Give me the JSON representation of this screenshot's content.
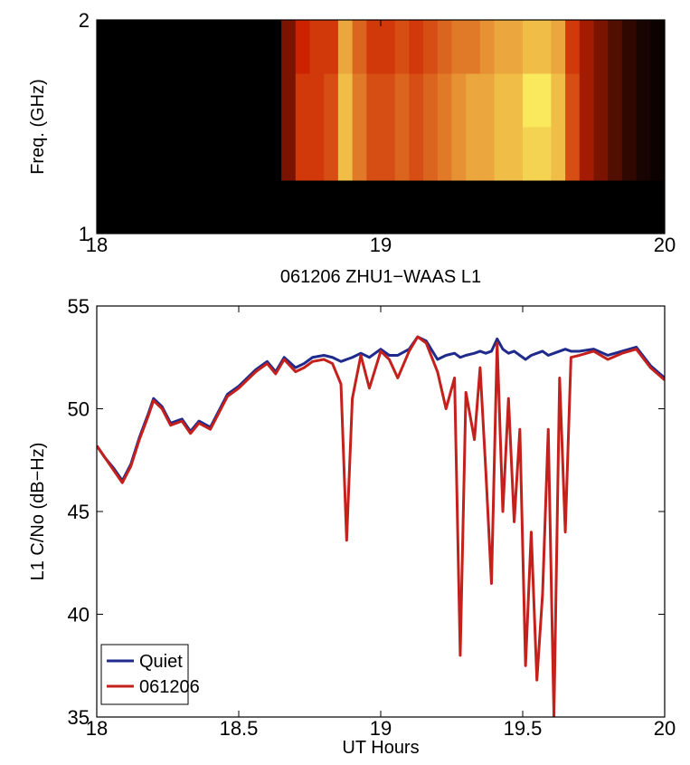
{
  "chart_data": [
    {
      "type": "heatmap",
      "x_label": "061206 ZHU1−WAAS L1",
      "y_label": "Freq. (GHz)",
      "x": [
        18,
        18.05,
        18.1,
        18.15,
        18.2,
        18.25,
        18.3,
        18.35,
        18.4,
        18.45,
        18.5,
        18.55,
        18.6,
        18.65,
        18.7,
        18.75,
        18.8,
        18.85,
        18.9,
        18.95,
        19,
        19.05,
        19.1,
        19.15,
        19.2,
        19.25,
        19.3,
        19.35,
        19.4,
        19.45,
        19.5,
        19.55,
        19.6,
        19.65,
        19.7,
        19.75,
        19.8,
        19.85,
        19.9,
        19.95,
        20
      ],
      "y": [
        1,
        1.25,
        1.5,
        1.75,
        2
      ],
      "values": [
        [
          0,
          0,
          0,
          0,
          0,
          0,
          0,
          0,
          0,
          0,
          0,
          0,
          0,
          0,
          0,
          0,
          0,
          0,
          0,
          0,
          0,
          0,
          0,
          0,
          0,
          0,
          0,
          0,
          0,
          0,
          0,
          0,
          0,
          0,
          0,
          0,
          0,
          0,
          0,
          0
        ],
        [
          0,
          0,
          0,
          0,
          0,
          0,
          0,
          0,
          0,
          0,
          0,
          0,
          0,
          0.3,
          0.55,
          0.55,
          0.6,
          0.85,
          0.7,
          0.6,
          0.6,
          0.65,
          0.6,
          0.65,
          0.7,
          0.75,
          0.8,
          0.8,
          0.85,
          0.85,
          0.9,
          0.9,
          0.85,
          0.6,
          0.4,
          0.3,
          0.2,
          0.12,
          0.06,
          0.03
        ],
        [
          0,
          0,
          0,
          0,
          0,
          0,
          0,
          0,
          0,
          0,
          0,
          0,
          0,
          0.3,
          0.55,
          0.55,
          0.6,
          0.85,
          0.7,
          0.6,
          0.6,
          0.65,
          0.6,
          0.65,
          0.7,
          0.75,
          0.8,
          0.8,
          0.85,
          0.85,
          0.95,
          0.95,
          0.85,
          0.6,
          0.4,
          0.3,
          0.2,
          0.12,
          0.06,
          0.03
        ],
        [
          0,
          0,
          0,
          0,
          0,
          0,
          0,
          0,
          0,
          0,
          0,
          0,
          0,
          0.3,
          0.5,
          0.55,
          0.55,
          0.8,
          0.65,
          0.55,
          0.55,
          0.6,
          0.55,
          0.6,
          0.65,
          0.7,
          0.7,
          0.75,
          0.8,
          0.8,
          0.85,
          0.85,
          0.8,
          0.55,
          0.4,
          0.3,
          0.2,
          0.12,
          0.06,
          0.03
        ]
      ],
      "colormap": [
        "#000000",
        "#cc2200",
        "#ffff66"
      ],
      "clim": [
        0,
        1
      ],
      "xlim": [
        18,
        20
      ],
      "xticks": [
        18,
        19,
        20
      ],
      "ylim": [
        1,
        2
      ],
      "yticks": [
        1,
        2
      ]
    },
    {
      "type": "line",
      "x_label": "UT Hours",
      "y_label": "L1 C/No (dB−Hz)",
      "x": [
        18,
        18.03,
        18.06,
        18.09,
        18.12,
        18.15,
        18.18,
        18.2,
        18.23,
        18.26,
        18.3,
        18.33,
        18.36,
        18.4,
        18.43,
        18.46,
        18.5,
        18.53,
        18.56,
        18.6,
        18.63,
        18.66,
        18.7,
        18.73,
        18.76,
        18.8,
        18.83,
        18.86,
        18.88,
        18.9,
        18.93,
        18.96,
        19,
        19.03,
        19.06,
        19.1,
        19.13,
        19.16,
        19.2,
        19.23,
        19.26,
        19.28,
        19.3,
        19.33,
        19.35,
        19.37,
        19.39,
        19.41,
        19.43,
        19.45,
        19.47,
        19.49,
        19.51,
        19.53,
        19.55,
        19.57,
        19.59,
        19.61,
        19.63,
        19.65,
        19.67,
        19.7,
        19.75,
        19.8,
        19.85,
        19.9,
        19.95,
        20
      ],
      "series": [
        {
          "name": "Quiet",
          "color": "#1f2a8c",
          "values": [
            48.2,
            47.6,
            47.1,
            46.5,
            47.3,
            48.6,
            49.7,
            50.5,
            50.1,
            49.3,
            49.5,
            48.9,
            49.4,
            49.1,
            49.9,
            50.7,
            51.1,
            51.5,
            51.9,
            52.3,
            51.8,
            52.5,
            52.0,
            52.2,
            52.5,
            52.6,
            52.5,
            52.3,
            52.4,
            52.5,
            52.7,
            52.5,
            52.9,
            52.6,
            52.6,
            52.9,
            53.5,
            53.3,
            52.4,
            52.6,
            52.7,
            52.5,
            52.6,
            52.7,
            52.8,
            52.7,
            52.8,
            53.4,
            52.9,
            52.7,
            52.8,
            52.6,
            52.4,
            52.6,
            52.7,
            52.8,
            52.6,
            52.7,
            52.8,
            52.9,
            52.8,
            52.8,
            52.9,
            52.6,
            52.8,
            53.0,
            52.1,
            51.5
          ]
        },
        {
          "name": "061206",
          "color": "#c4201c",
          "values": [
            48.2,
            47.6,
            47.0,
            46.4,
            47.2,
            48.5,
            49.6,
            50.4,
            50.0,
            49.2,
            49.4,
            48.8,
            49.3,
            49.0,
            49.8,
            50.6,
            51.0,
            51.4,
            51.8,
            52.2,
            51.7,
            52.4,
            51.8,
            52.0,
            52.3,
            52.4,
            52.2,
            51.2,
            43.6,
            50.5,
            52.6,
            51.0,
            52.8,
            52.4,
            51.5,
            52.8,
            53.5,
            53.2,
            51.8,
            50.0,
            51.5,
            38.0,
            50.8,
            48.5,
            52.0,
            47.0,
            41.5,
            53.2,
            45.0,
            50.5,
            44.5,
            49.0,
            37.5,
            44.0,
            36.8,
            41.0,
            49.0,
            35.0,
            51.5,
            44.0,
            52.5,
            52.6,
            52.8,
            52.4,
            52.7,
            52.9,
            52.0,
            51.4
          ]
        }
      ],
      "legend": "lower left",
      "xlim": [
        18,
        20
      ],
      "xticks": [
        18,
        18.5,
        19,
        19.5,
        20
      ],
      "ylim": [
        35,
        55
      ],
      "yticks": [
        35,
        40,
        45,
        50,
        55
      ]
    }
  ]
}
